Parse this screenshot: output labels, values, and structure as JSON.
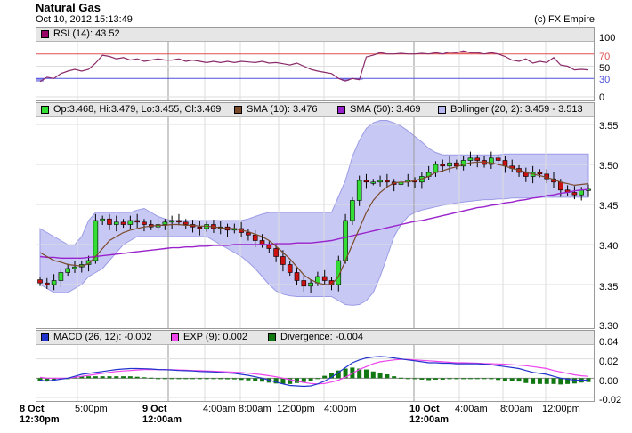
{
  "header": {
    "title": "Natural Gas",
    "timestamp": "Oct 10, 2012 15:13:49",
    "copyright": "(c) FX Empire"
  },
  "rsi_panel": {
    "legend": "RSI (14): 43.52",
    "color": "#cc0066",
    "ticks": [
      "100",
      "70",
      "50",
      "30",
      "0"
    ]
  },
  "price_panel": {
    "legend": {
      "ohlc": "Op:3.468, Hi:3.479, Lo:3.455, Cl:3.469",
      "sma10": "SMA (10): 3.476",
      "sma50": "SMA (50): 3.469",
      "bollinger": "Bollinger (20, 2): 3.459 - 3.513"
    },
    "ticks": [
      "3.55",
      "3.50",
      "3.45",
      "3.40",
      "3.35",
      "3.30"
    ]
  },
  "macd_panel": {
    "legend": {
      "macd": "MACD (26, 12): -0.002",
      "exp": "EXP (9): 0.002",
      "divergence": "Divergence: -0.004"
    },
    "ticks": [
      "0.04",
      "0.02",
      "0.00",
      "-0.02"
    ]
  },
  "x_axis": {
    "labels": [
      {
        "line1": "8 Oct",
        "line2": "12:30pm",
        "bold": true
      },
      {
        "line1": "5:00pm",
        "line2": "",
        "bold": false
      },
      {
        "line1": "9 Oct",
        "line2": "12:00am",
        "bold": true
      },
      {
        "line1": "4:00am",
        "line2": "",
        "bold": false
      },
      {
        "line1": "8:00am",
        "line2": "",
        "bold": false
      },
      {
        "line1": "12:00pm",
        "line2": "",
        "bold": false
      },
      {
        "line1": "4:00pm",
        "line2": "",
        "bold": false
      },
      {
        "line1": "10 Oct",
        "line2": "12:00am",
        "bold": true
      },
      {
        "line1": "4:00am",
        "line2": "",
        "bold": false
      },
      {
        "line1": "8:00am",
        "line2": "",
        "bold": false
      },
      {
        "line1": "12:00pm",
        "line2": "",
        "bold": false
      }
    ]
  },
  "colors": {
    "up": "#33dd33",
    "down": "#cc1111",
    "sma10": "#7a4a2a",
    "sma50": "#9922cc",
    "bollinger_fill": "#c8c8f5",
    "bollinger_line": "#9b9be6",
    "macd": "#2233cc",
    "exp": "#ee44ee",
    "divergence": "#117711",
    "rsi_upper": "#e05050",
    "rsi_lower": "#5050e0"
  },
  "chart_data": [
    {
      "type": "line",
      "name": "RSI (14)",
      "ylim": [
        0,
        100
      ],
      "reference_lines": [
        70,
        30
      ],
      "values": [
        25,
        32,
        30,
        38,
        42,
        45,
        42,
        45,
        55,
        68,
        66,
        62,
        64,
        60,
        62,
        58,
        60,
        62,
        60,
        60,
        62,
        58,
        60,
        58,
        56,
        58,
        56,
        58,
        56,
        58,
        57,
        56,
        58,
        55,
        56,
        54,
        52,
        55,
        50,
        45,
        42,
        40,
        38,
        30,
        26,
        30,
        28,
        65,
        68,
        72,
        70,
        70,
        71,
        70,
        70,
        71,
        70,
        72,
        70,
        73,
        72,
        75,
        72,
        72,
        70,
        72,
        70,
        66,
        60,
        58,
        62,
        55,
        58,
        56,
        64,
        52,
        50,
        44,
        45,
        44
      ]
    },
    {
      "type": "candlestick",
      "name": "Natural Gas",
      "ylim": [
        3.3,
        3.55
      ],
      "closes": [
        3.352,
        3.35,
        3.355,
        3.365,
        3.37,
        3.372,
        3.375,
        3.38,
        3.43,
        3.432,
        3.425,
        3.428,
        3.425,
        3.43,
        3.428,
        3.425,
        3.422,
        3.425,
        3.428,
        3.43,
        3.428,
        3.425,
        3.422,
        3.42,
        3.425,
        3.42,
        3.422,
        3.418,
        3.42,
        3.415,
        3.412,
        3.405,
        3.4,
        3.395,
        3.385,
        3.375,
        3.365,
        3.355,
        3.348,
        3.352,
        3.36,
        3.355,
        3.35,
        3.38,
        3.43,
        3.455,
        3.48,
        3.478,
        3.478,
        3.48,
        3.478,
        3.475,
        3.478,
        3.48,
        3.478,
        3.485,
        3.49,
        3.5,
        3.498,
        3.502,
        3.498,
        3.505,
        3.508,
        3.505,
        3.5,
        3.508,
        3.505,
        3.498,
        3.495,
        3.49,
        3.485,
        3.49,
        3.488,
        3.482,
        3.478,
        3.468,
        3.465,
        3.462,
        3.468,
        3.469
      ],
      "sma10": [
        3.39,
        3.385,
        3.38,
        3.378,
        3.375,
        3.374,
        3.373,
        3.376,
        3.385,
        3.395,
        3.405,
        3.41,
        3.415,
        3.418,
        3.42,
        3.422,
        3.423,
        3.424,
        3.424,
        3.425,
        3.425,
        3.424,
        3.424,
        3.423,
        3.423,
        3.422,
        3.421,
        3.42,
        3.42,
        3.418,
        3.416,
        3.413,
        3.41,
        3.405,
        3.398,
        3.39,
        3.382,
        3.372,
        3.362,
        3.356,
        3.352,
        3.35,
        3.35,
        3.36,
        3.38,
        3.4,
        3.42,
        3.44,
        3.455,
        3.465,
        3.472,
        3.477,
        3.478,
        3.478,
        3.48,
        3.482,
        3.485,
        3.49,
        3.492,
        3.495,
        3.497,
        3.5,
        3.502,
        3.503,
        3.503,
        3.502,
        3.5,
        3.498,
        3.495,
        3.493,
        3.49,
        3.488,
        3.486,
        3.484,
        3.481,
        3.478,
        3.476,
        3.474,
        3.475,
        3.476
      ],
      "sma50": [
        3.385,
        3.384,
        3.384,
        3.383,
        3.383,
        3.383,
        3.383,
        3.384,
        3.385,
        3.386,
        3.387,
        3.388,
        3.389,
        3.39,
        3.391,
        3.392,
        3.393,
        3.394,
        3.395,
        3.396,
        3.396,
        3.397,
        3.397,
        3.398,
        3.398,
        3.399,
        3.399,
        3.399,
        3.4,
        3.4,
        3.4,
        3.4,
        3.4,
        3.4,
        3.401,
        3.401,
        3.401,
        3.402,
        3.402,
        3.402,
        3.403,
        3.404,
        3.405,
        3.407,
        3.409,
        3.411,
        3.413,
        3.415,
        3.417,
        3.419,
        3.421,
        3.423,
        3.425,
        3.427,
        3.429,
        3.43,
        3.432,
        3.434,
        3.436,
        3.438,
        3.44,
        3.442,
        3.444,
        3.446,
        3.447,
        3.449,
        3.45,
        3.452,
        3.453,
        3.455,
        3.456,
        3.458,
        3.459,
        3.461,
        3.462,
        3.464,
        3.465,
        3.467,
        3.468,
        3.469
      ],
      "bollinger_upper": [
        3.42,
        3.415,
        3.41,
        3.405,
        3.4,
        3.4,
        3.41,
        3.43,
        3.44,
        3.44,
        3.44,
        3.44,
        3.44,
        3.44,
        3.443,
        3.445,
        3.44,
        3.435,
        3.432,
        3.43,
        3.43,
        3.43,
        3.43,
        3.43,
        3.43,
        3.43,
        3.43,
        3.43,
        3.43,
        3.43,
        3.432,
        3.435,
        3.438,
        3.44,
        3.44,
        3.44,
        3.44,
        3.44,
        3.44,
        3.44,
        3.44,
        3.44,
        3.44,
        3.46,
        3.48,
        3.51,
        3.53,
        3.545,
        3.552,
        3.555,
        3.555,
        3.552,
        3.548,
        3.542,
        3.535,
        3.528,
        3.52,
        3.515,
        3.512,
        3.512,
        3.512,
        3.512,
        3.512,
        3.512,
        3.512,
        3.512,
        3.512,
        3.513,
        3.513,
        3.513,
        3.513,
        3.513,
        3.513,
        3.513,
        3.513,
        3.513,
        3.513,
        3.513,
        3.513,
        3.513
      ],
      "bollinger_lower": [
        3.35,
        3.345,
        3.34,
        3.34,
        3.34,
        3.345,
        3.35,
        3.36,
        3.365,
        3.37,
        3.38,
        3.39,
        3.4,
        3.405,
        3.41,
        3.41,
        3.41,
        3.41,
        3.41,
        3.41,
        3.41,
        3.41,
        3.41,
        3.41,
        3.41,
        3.405,
        3.4,
        3.395,
        3.39,
        3.385,
        3.378,
        3.37,
        3.36,
        3.35,
        3.342,
        3.338,
        3.336,
        3.335,
        3.335,
        3.335,
        3.335,
        3.335,
        3.335,
        3.33,
        3.325,
        3.324,
        3.325,
        3.33,
        3.34,
        3.36,
        3.385,
        3.41,
        3.425,
        3.435,
        3.44,
        3.443,
        3.445,
        3.447,
        3.449,
        3.45,
        3.452,
        3.453,
        3.454,
        3.455,
        3.456,
        3.456,
        3.457,
        3.457,
        3.458,
        3.458,
        3.458,
        3.458,
        3.459,
        3.459,
        3.459,
        3.459,
        3.459,
        3.459,
        3.459,
        3.459
      ]
    },
    {
      "type": "line",
      "name": "MACD",
      "ylim": [
        -0.02,
        0.04
      ],
      "series": [
        {
          "name": "MACD (26, 12)",
          "values": [
            -0.002,
            -0.003,
            -0.002,
            -0.001,
            0.0,
            0.002,
            0.004,
            0.005,
            0.006,
            0.007,
            0.008,
            0.009,
            0.0095,
            0.01,
            0.01,
            0.0098,
            0.0095,
            0.009,
            0.0088,
            0.0085,
            0.008,
            0.0078,
            0.0075,
            0.007,
            0.0068,
            0.0065,
            0.006,
            0.0055,
            0.005,
            0.004,
            0.003,
            0.0015,
            0.0,
            -0.002,
            -0.004,
            -0.006,
            -0.0075,
            -0.008,
            -0.0085,
            -0.008,
            -0.006,
            -0.003,
            0.001,
            0.006,
            0.011,
            0.016,
            0.019,
            0.021,
            0.022,
            0.0225,
            0.022,
            0.021,
            0.02,
            0.019,
            0.018,
            0.017,
            0.016,
            0.016,
            0.0155,
            0.0155,
            0.015,
            0.015,
            0.015,
            0.015,
            0.0145,
            0.014,
            0.013,
            0.012,
            0.011,
            0.01,
            0.008,
            0.006,
            0.005,
            0.004,
            0.002,
            0.0,
            -0.001,
            -0.002,
            -0.002,
            -0.002
          ]
        },
        {
          "name": "EXP (9)",
          "values": [
            0.001,
            0.0,
            0.0,
            0.0,
            0.0,
            0.001,
            0.002,
            0.003,
            0.004,
            0.005,
            0.006,
            0.007,
            0.0075,
            0.008,
            0.0085,
            0.009,
            0.009,
            0.009,
            0.009,
            0.0088,
            0.0085,
            0.0082,
            0.008,
            0.0078,
            0.0075,
            0.0072,
            0.007,
            0.0066,
            0.0062,
            0.0058,
            0.0052,
            0.0045,
            0.0036,
            0.0026,
            0.0015,
            0.0,
            -0.0015,
            -0.003,
            -0.0045,
            -0.0055,
            -0.006,
            -0.0055,
            -0.004,
            -0.002,
            0.001,
            0.005,
            0.009,
            0.012,
            0.015,
            0.017,
            0.018,
            0.019,
            0.0195,
            0.0195,
            0.019,
            0.0185,
            0.018,
            0.0175,
            0.017,
            0.0165,
            0.016,
            0.016,
            0.0158,
            0.0155,
            0.0152,
            0.015,
            0.0148,
            0.0145,
            0.014,
            0.0135,
            0.013,
            0.012,
            0.011,
            0.01,
            0.008,
            0.0065,
            0.005,
            0.0035,
            0.0025,
            0.002
          ]
        },
        {
          "name": "Divergence",
          "values": [
            -0.003,
            -0.003,
            -0.002,
            -0.001,
            0.0,
            0.001,
            0.002,
            0.002,
            0.002,
            0.002,
            0.002,
            0.002,
            0.002,
            0.002,
            0.0015,
            0.001,
            0.0005,
            0.0,
            -0.0002,
            -0.0003,
            -0.0005,
            -0.0004,
            -0.0005,
            -0.0008,
            -0.0007,
            -0.0007,
            -0.001,
            -0.0011,
            -0.0012,
            -0.0018,
            -0.0022,
            -0.003,
            -0.0036,
            -0.0046,
            -0.0055,
            -0.006,
            -0.006,
            -0.005,
            -0.004,
            -0.0025,
            0.0,
            0.0025,
            0.005,
            0.008,
            0.01,
            0.011,
            0.01,
            0.009,
            0.007,
            0.0055,
            0.004,
            0.002,
            0.0005,
            -0.0005,
            -0.001,
            -0.0015,
            -0.002,
            -0.0015,
            -0.0015,
            -0.001,
            -0.001,
            -0.001,
            -0.0008,
            -0.0005,
            -0.0007,
            -0.001,
            -0.0018,
            -0.0025,
            -0.003,
            -0.0035,
            -0.005,
            -0.006,
            -0.006,
            -0.006,
            -0.006,
            -0.0065,
            -0.006,
            -0.0055,
            -0.0045,
            -0.004
          ]
        }
      ]
    }
  ]
}
